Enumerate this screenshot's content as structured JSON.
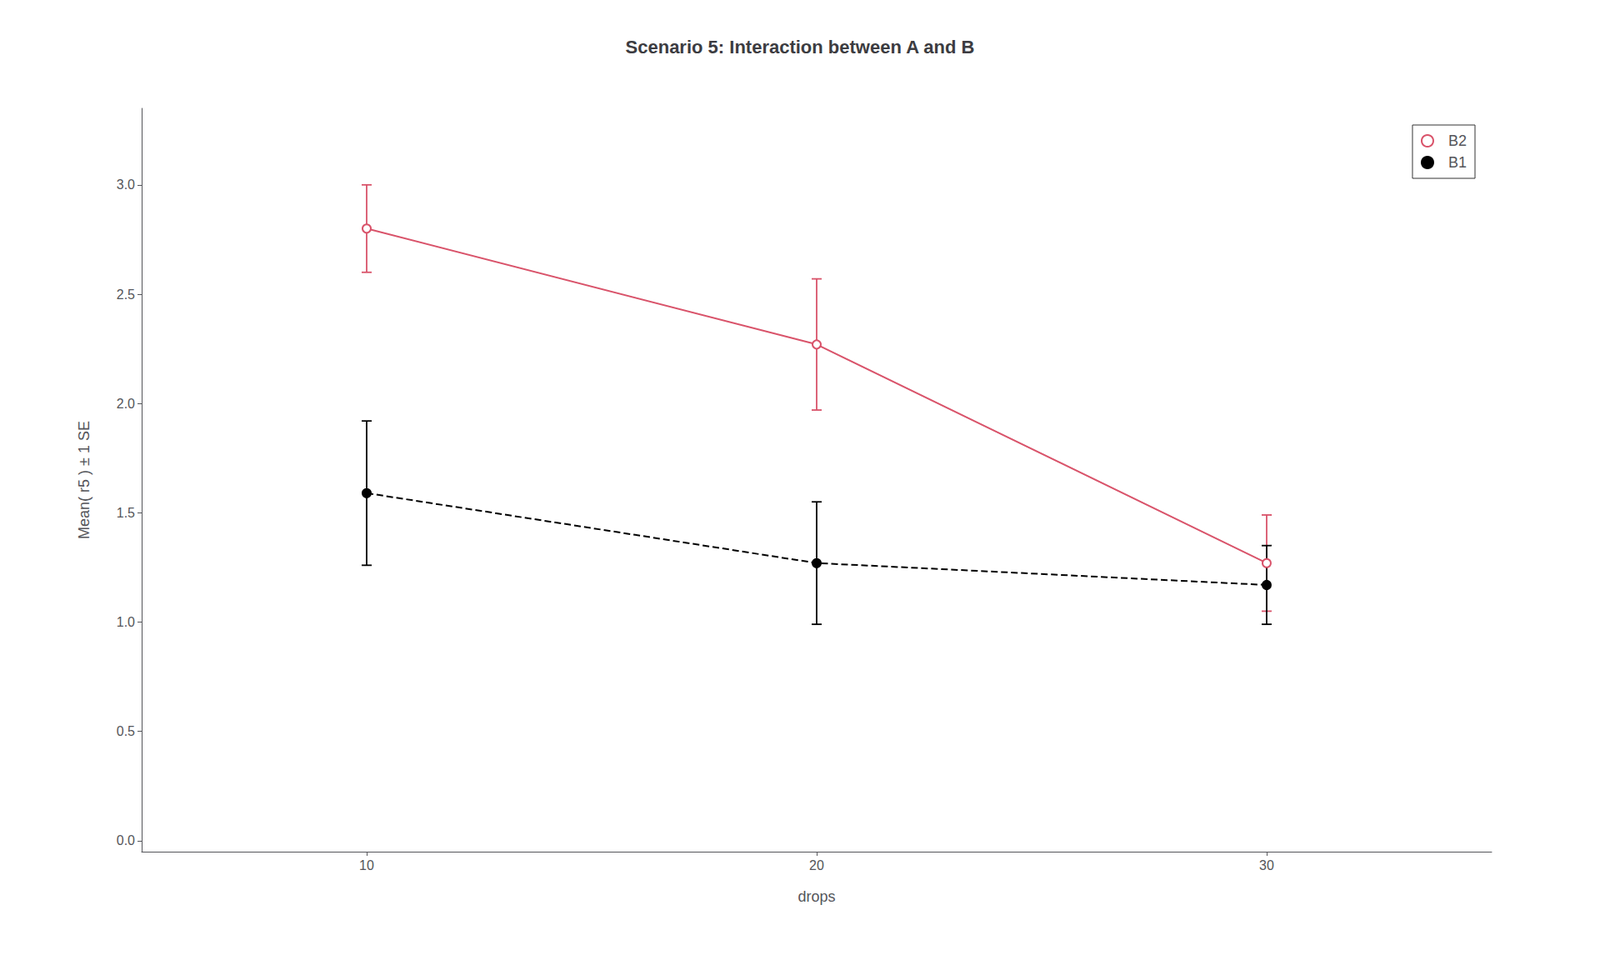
{
  "chart_data": {
    "type": "line",
    "title": "Scenario 5: Interaction between A and B",
    "xlabel": "drops",
    "ylabel": "Mean( r5 ) ± 1 SE",
    "x": [
      10,
      20,
      30
    ],
    "series": [
      {
        "name": "B2",
        "color": "#d9536a",
        "values": [
          2.8,
          2.27,
          1.27
        ],
        "errors": [
          0.2,
          0.3,
          0.22
        ],
        "line_style": "solid",
        "marker": "open_circle"
      },
      {
        "name": "B1",
        "color": "#000000",
        "values": [
          1.59,
          1.27,
          1.17
        ],
        "errors": [
          0.33,
          0.28,
          0.18
        ],
        "line_style": "dashed",
        "marker": "circle"
      }
    ],
    "xlim": [
      5,
      35
    ],
    "xticks": [
      10,
      20,
      30
    ],
    "ylim": [
      -0.05,
      3.35
    ],
    "yticks": [
      {
        "value": 0.0,
        "label": "0.0"
      },
      0.5,
      {
        "value": 1.0,
        "label": "1.0"
      },
      1.5,
      {
        "value": 2.0,
        "label": "2.0"
      },
      2.5,
      {
        "value": 3.0,
        "label": "3.0"
      }
    ],
    "grid": false,
    "legend": "upper right"
  }
}
